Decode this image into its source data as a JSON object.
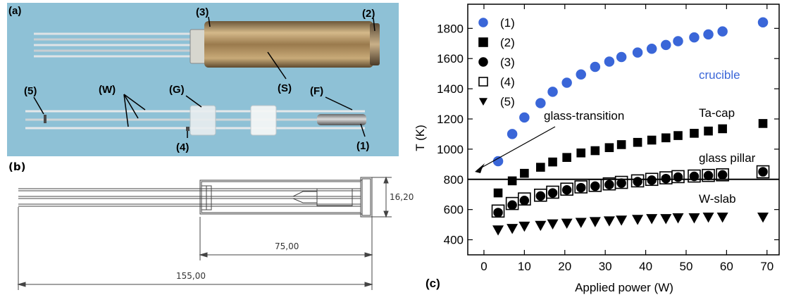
{
  "photo": {
    "panel_label": "(a)",
    "labels": {
      "l1": "(1)",
      "l2": "(2)",
      "l3": "(3)",
      "l4": "(4)",
      "l5": "(5)",
      "w": "(W)",
      "g": "(G)",
      "s": "(S)",
      "f": "(F)"
    },
    "colors": {
      "background": "#8ec1d6",
      "foil": "#a98a5c",
      "rod": "#d8dde0"
    }
  },
  "drawing": {
    "panel_label": "(b)",
    "dimensions": {
      "diameter": "16,20",
      "inner_length": "75,00",
      "total_length": "155,00"
    }
  },
  "chart_data": {
    "type": "scatter",
    "panel_label": "(c)",
    "xlabel": "Applied power (W)",
    "ylabel": "T (K)",
    "xlim": [
      -4,
      73
    ],
    "ylim": [
      300,
      1960
    ],
    "xticks": [
      0,
      10,
      20,
      30,
      40,
      50,
      60,
      70
    ],
    "yticks": [
      400,
      600,
      800,
      1000,
      1200,
      1400,
      1600,
      1800
    ],
    "hline": 800,
    "legend_position": "top-left",
    "series": [
      {
        "name": "(1)",
        "marker": "circle",
        "color": "#3a66d8",
        "filled": true,
        "x": [
          3.5,
          7,
          10,
          14,
          17,
          20.5,
          24,
          27.5,
          31,
          34,
          38,
          41.5,
          45,
          48,
          52,
          55.5,
          59,
          69
        ],
        "y": [
          920,
          1100,
          1210,
          1305,
          1380,
          1440,
          1495,
          1545,
          1580,
          1610,
          1640,
          1665,
          1690,
          1715,
          1740,
          1760,
          1780,
          1840
        ]
      },
      {
        "name": "(2)",
        "marker": "square",
        "color": "#000000",
        "filled": true,
        "x": [
          3.5,
          7,
          10,
          14,
          17,
          20.5,
          24,
          27.5,
          31,
          34,
          38,
          41.5,
          45,
          48,
          52,
          55.5,
          59,
          69
        ],
        "y": [
          710,
          790,
          840,
          880,
          915,
          945,
          975,
          990,
          1010,
          1030,
          1045,
          1060,
          1075,
          1090,
          1105,
          1120,
          1135,
          1170
        ]
      },
      {
        "name": "(3)",
        "marker": "circle",
        "color": "#000000",
        "filled": true,
        "x": [
          3.5,
          7,
          10,
          14,
          17,
          20.5,
          24,
          27.5,
          31,
          34,
          38,
          41.5,
          45,
          48,
          52,
          55.5,
          59,
          69
        ],
        "y": [
          580,
          630,
          660,
          690,
          710,
          730,
          745,
          755,
          765,
          775,
          785,
          795,
          805,
          815,
          820,
          825,
          830,
          850
        ]
      },
      {
        "name": "(4)",
        "marker": "square",
        "color": "#000000",
        "filled": false,
        "x": [
          3.5,
          7,
          10,
          14,
          17,
          20.5,
          24,
          27.5,
          31,
          34,
          38,
          41.5,
          45,
          48,
          52,
          55.5,
          59,
          69
        ],
        "y": [
          590,
          640,
          670,
          695,
          715,
          735,
          750,
          760,
          770,
          780,
          790,
          800,
          810,
          818,
          822,
          826,
          830,
          850
        ]
      },
      {
        "name": "(5)",
        "marker": "triangle-down",
        "color": "#000000",
        "filled": true,
        "x": [
          3.5,
          7,
          10,
          14,
          17,
          20.5,
          24,
          27.5,
          31,
          34,
          38,
          41.5,
          45,
          48,
          52,
          55.5,
          59,
          69
        ],
        "y": [
          465,
          475,
          490,
          495,
          505,
          510,
          515,
          520,
          525,
          530,
          535,
          540,
          540,
          545,
          545,
          550,
          550,
          550
        ]
      }
    ],
    "annotations": {
      "crucible": "crucible",
      "ta_cap": "Ta-cap",
      "glass_pillar": "glass pillar",
      "w_slab": "W-slab",
      "glass_transition": "glass-transition"
    }
  }
}
